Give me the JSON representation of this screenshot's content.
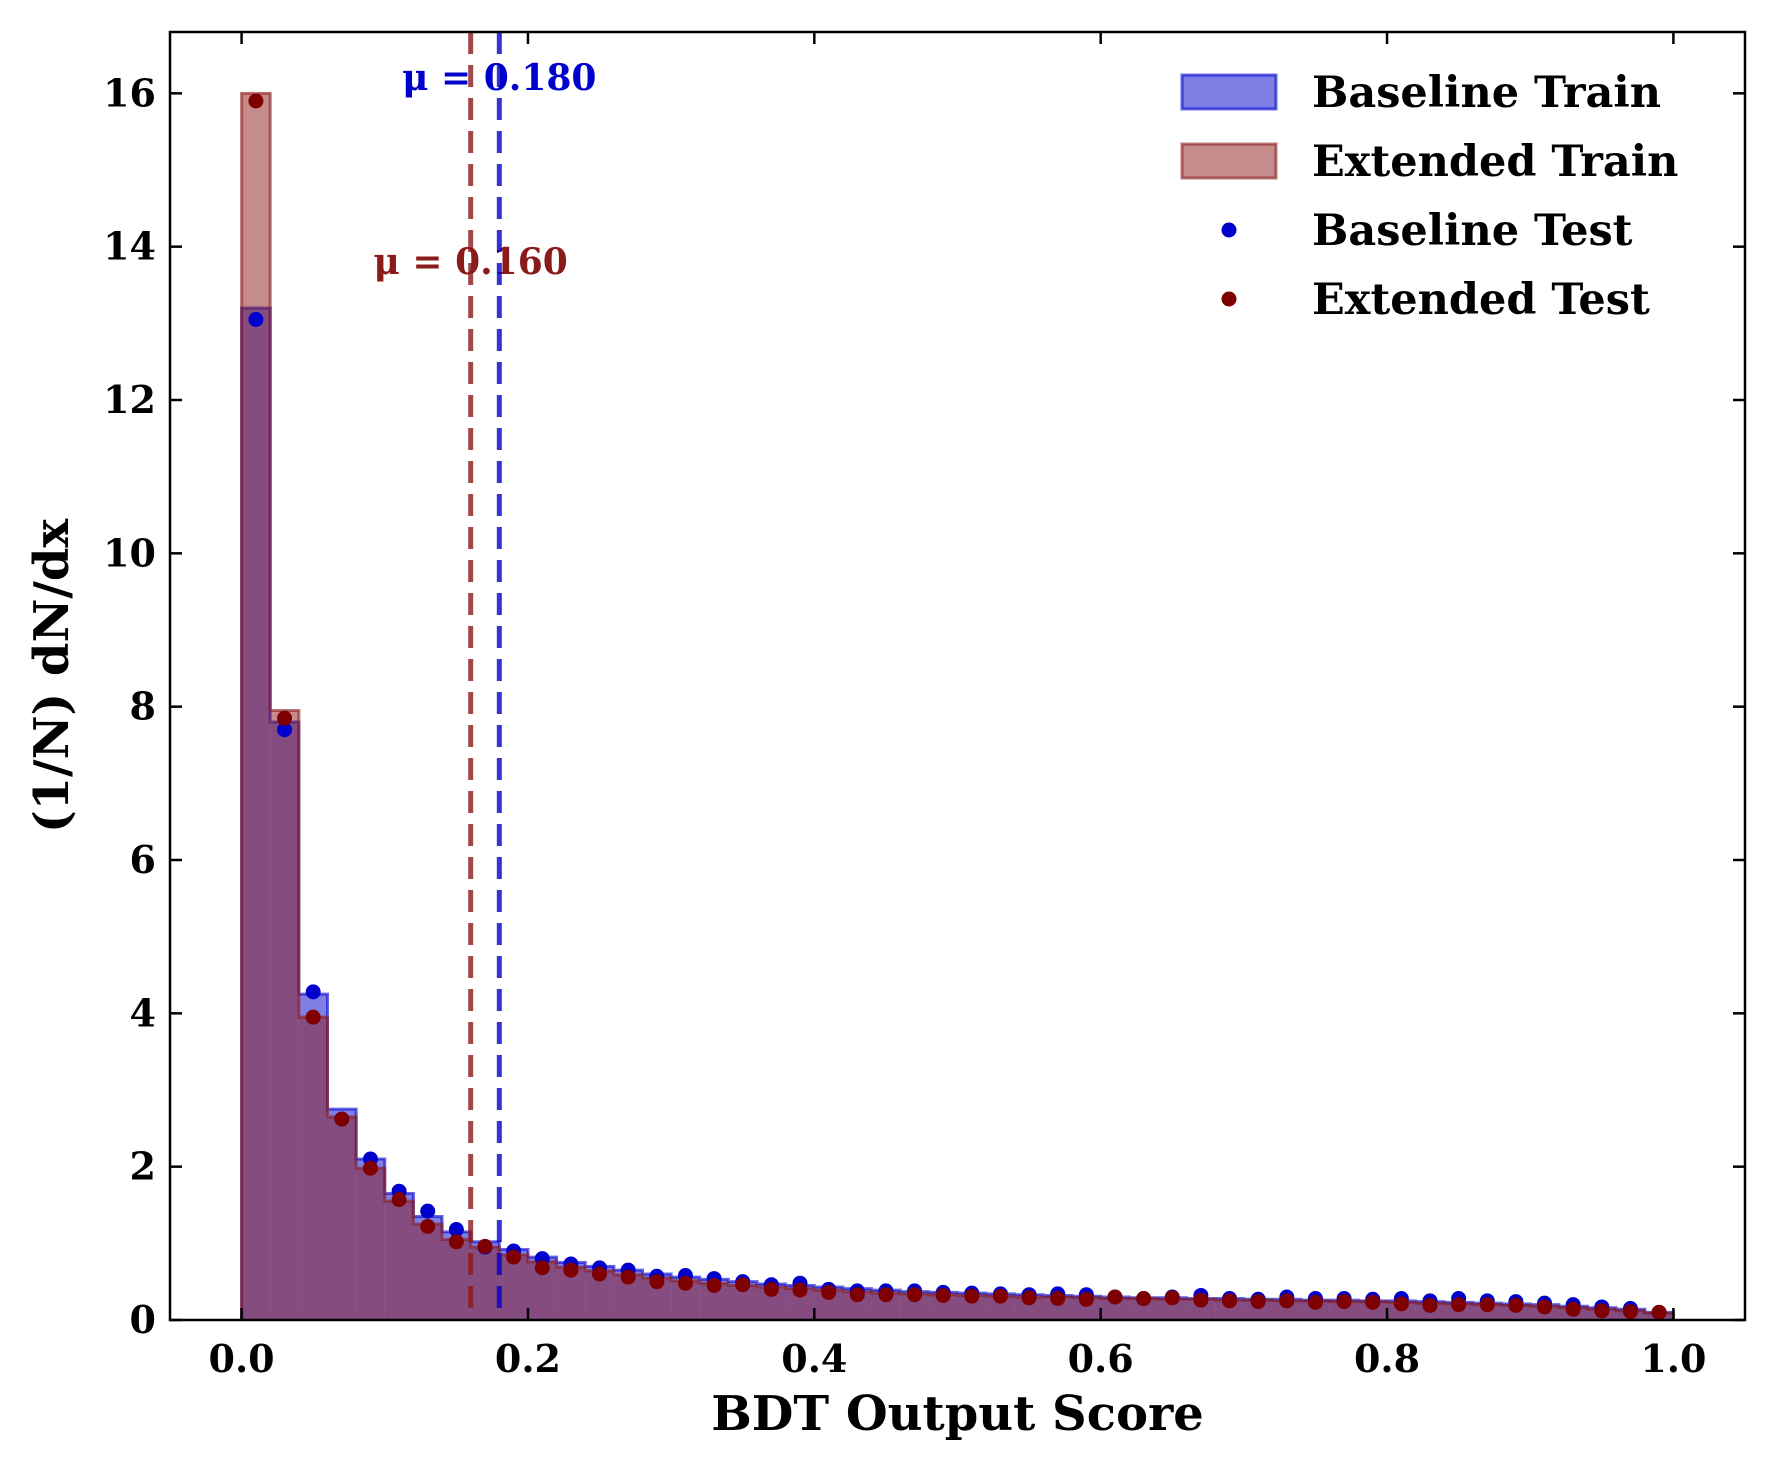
{
  "chart_data": {
    "type": "histogram",
    "xlabel": "BDT Output Score",
    "ylabel": "(1/N) dN/dx",
    "xlim": [
      -0.05,
      1.05
    ],
    "ylim": [
      0,
      16.8
    ],
    "xticks": [
      0.0,
      0.2,
      0.4,
      0.6,
      0.8,
      1.0
    ],
    "xtick_labels": [
      "0.0",
      "0.2",
      "0.4",
      "0.6",
      "0.8",
      "1.0"
    ],
    "yticks": [
      0,
      2,
      4,
      6,
      8,
      10,
      12,
      14,
      16
    ],
    "ytick_labels": [
      "0",
      "2",
      "4",
      "6",
      "8",
      "10",
      "12",
      "14",
      "16"
    ],
    "bin_edges_start": 0.0,
    "bin_width": 0.02,
    "legend_position": "top-right",
    "series": [
      {
        "name": "Baseline Train",
        "kind": "filled-histogram",
        "color": "#0000cc",
        "values": [
          13.2,
          7.8,
          4.25,
          2.75,
          2.1,
          1.65,
          1.35,
          1.15,
          1.02,
          0.92,
          0.82,
          0.75,
          0.7,
          0.65,
          0.6,
          0.56,
          0.53,
          0.5,
          0.47,
          0.45,
          0.43,
          0.41,
          0.39,
          0.37,
          0.36,
          0.35,
          0.34,
          0.33,
          0.32,
          0.31,
          0.3,
          0.29,
          0.29,
          0.28,
          0.28,
          0.27,
          0.27,
          0.26,
          0.26,
          0.25,
          0.25,
          0.24,
          0.23,
          0.22,
          0.21,
          0.2,
          0.18,
          0.16,
          0.14,
          0.1
        ]
      },
      {
        "name": "Extended Train",
        "kind": "filled-histogram",
        "color": "#8b1a1a",
        "values": [
          16.0,
          7.95,
          3.95,
          2.65,
          1.98,
          1.55,
          1.25,
          1.05,
          0.95,
          0.85,
          0.76,
          0.69,
          0.64,
          0.59,
          0.55,
          0.51,
          0.48,
          0.45,
          0.43,
          0.41,
          0.39,
          0.37,
          0.35,
          0.34,
          0.33,
          0.32,
          0.31,
          0.3,
          0.3,
          0.29,
          0.28,
          0.28,
          0.27,
          0.27,
          0.26,
          0.26,
          0.25,
          0.25,
          0.24,
          0.24,
          0.23,
          0.22,
          0.21,
          0.2,
          0.19,
          0.18,
          0.16,
          0.14,
          0.12,
          0.09
        ]
      },
      {
        "name": "Baseline Test",
        "kind": "points",
        "color": "#0000cc",
        "values": [
          13.05,
          7.7,
          4.28,
          2.62,
          2.1,
          1.68,
          1.42,
          1.18,
          0.95,
          0.9,
          0.8,
          0.73,
          0.68,
          0.65,
          0.57,
          0.58,
          0.54,
          0.5,
          0.46,
          0.48,
          0.4,
          0.38,
          0.38,
          0.38,
          0.36,
          0.35,
          0.34,
          0.33,
          0.34,
          0.33,
          0.3,
          0.28,
          0.3,
          0.32,
          0.28,
          0.27,
          0.3,
          0.28,
          0.28,
          0.27,
          0.28,
          0.25,
          0.28,
          0.25,
          0.24,
          0.22,
          0.2,
          0.17,
          0.15,
          0.1
        ]
      },
      {
        "name": "Extended Test",
        "kind": "points",
        "color": "#7f0000",
        "values": [
          15.9,
          7.85,
          3.95,
          2.62,
          1.98,
          1.57,
          1.22,
          1.02,
          0.96,
          0.82,
          0.68,
          0.65,
          0.6,
          0.56,
          0.5,
          0.48,
          0.45,
          0.46,
          0.4,
          0.39,
          0.36,
          0.33,
          0.33,
          0.33,
          0.32,
          0.31,
          0.31,
          0.29,
          0.28,
          0.27,
          0.3,
          0.28,
          0.29,
          0.26,
          0.25,
          0.24,
          0.25,
          0.23,
          0.24,
          0.23,
          0.21,
          0.19,
          0.2,
          0.2,
          0.19,
          0.17,
          0.14,
          0.12,
          0.11,
          0.1
        ]
      }
    ],
    "vlines": [
      {
        "series": "Extended Train",
        "x": 0.16,
        "color": "#8b1a1a",
        "label": "μ = 0.160",
        "label_y": 13.8
      },
      {
        "series": "Baseline Train",
        "x": 0.18,
        "color": "#0000cc",
        "label": "μ = 0.180",
        "label_y": 16.2
      }
    ]
  }
}
